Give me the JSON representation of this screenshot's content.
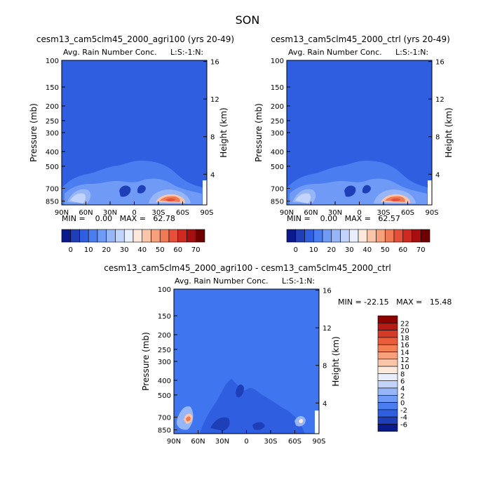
{
  "page": {
    "title": "SON"
  },
  "colors": {
    "background_level": "#2f5fe0",
    "diff_background": "#3f76f0"
  },
  "panels": {
    "left": {
      "title": "cesm13_cam5clm45_2000_agri100 (yrs 20-49)",
      "subtitle": "Avg. Rain Number Conc.",
      "corner_label": "L:S:-1:N:",
      "min_max": "MIN =    0.00   MAX =   62.78"
    },
    "right": {
      "title": "cesm13_cam5clm45_2000_ctrl (yrs 20-49)",
      "subtitle": "Avg. Rain Number Conc.",
      "corner_label": "L:S:-1:N:",
      "min_max": "MIN =    0.00   MAX =   62.57"
    },
    "diff": {
      "title": "cesm13_cam5clm45_2000_agri100 - cesm13_cam5clm45_2000_ctrl",
      "subtitle": "Avg. Rain Number Conc.",
      "corner_label": "L:S:-1:N:",
      "min_max": "MIN = -22.15   MAX =   15.48"
    }
  },
  "axes": {
    "ylabel": "Pressure (mb)",
    "y2label": "Height (km)",
    "x_ticks": [
      "90N",
      "60N",
      "30N",
      "0",
      "30S",
      "60S",
      "90S"
    ],
    "y_ticks": [
      "100",
      "150",
      "200",
      "250",
      "300",
      "400",
      "500",
      "700",
      "850"
    ],
    "y2_ticks": [
      "16",
      "12",
      "8",
      "4"
    ]
  },
  "colorbars": {
    "top": {
      "labels": [
        "0",
        "10",
        "20",
        "30",
        "40",
        "50",
        "60",
        "70"
      ],
      "colors": [
        "#0a1a8c",
        "#1f3fb8",
        "#2f5fe0",
        "#4a7ef0",
        "#6f9af5",
        "#96b6f8",
        "#c2d4fb",
        "#e8eefc",
        "#fde8dc",
        "#fbc5aa",
        "#f7a07c",
        "#f07a55",
        "#e6503a",
        "#cf2a20",
        "#a60f0f",
        "#6e0000"
      ]
    },
    "diff": {
      "labels": [
        "22",
        "20",
        "18",
        "16",
        "14",
        "12",
        "10",
        "8",
        "6",
        "4",
        "2",
        "0",
        "-2",
        "-4",
        "-6"
      ],
      "colors": [
        "#8c0000",
        "#b51a14",
        "#d43a26",
        "#ea5c3a",
        "#f47f55",
        "#f7a07c",
        "#fbc5aa",
        "#fde8dc",
        "#e8eefc",
        "#c2d4fb",
        "#96b6f8",
        "#6f9af5",
        "#4a7ef0",
        "#2f5fe0",
        "#1f3fb8",
        "#0a1a8c"
      ]
    }
  },
  "chart_data": [
    {
      "type": "heatmap",
      "title": "cesm13_cam5clm45_2000_agri100 (yrs 20-49)",
      "variable": "Avg. Rain Number Conc.",
      "x_categories": [
        "90N",
        "60N",
        "30N",
        "0",
        "30S",
        "60S",
        "90S"
      ],
      "x_range": [
        90,
        -90
      ],
      "ylabel": "Pressure (mb)",
      "y_scale": "log",
      "y_range": [
        100,
        900
      ],
      "min": 0.0,
      "max": 62.78,
      "features": [
        {
          "lat": 45,
          "pressure": 800,
          "value": 40
        },
        {
          "lat": -45,
          "pressure": 800,
          "value": 62
        },
        {
          "lat": 0,
          "pressure": 720,
          "value": 10
        }
      ]
    },
    {
      "type": "heatmap",
      "title": "cesm13_cam5clm45_2000_ctrl (yrs 20-49)",
      "variable": "Avg. Rain Number Conc.",
      "x_categories": [
        "90N",
        "60N",
        "30N",
        "0",
        "30S",
        "60S",
        "90S"
      ],
      "x_range": [
        90,
        -90
      ],
      "ylabel": "Pressure (mb)",
      "y_scale": "log",
      "y_range": [
        100,
        900
      ],
      "min": 0.0,
      "max": 62.57,
      "features": [
        {
          "lat": 45,
          "pressure": 800,
          "value": 40
        },
        {
          "lat": -45,
          "pressure": 800,
          "value": 62
        },
        {
          "lat": 0,
          "pressure": 720,
          "value": 10
        }
      ]
    },
    {
      "type": "heatmap",
      "title": "cesm13_cam5clm45_2000_agri100 - cesm13_cam5clm45_2000_ctrl",
      "variable": "Avg. Rain Number Conc.",
      "x_categories": [
        "90N",
        "60N",
        "30N",
        "0",
        "30S",
        "60S",
        "90S"
      ],
      "x_range": [
        90,
        -90
      ],
      "ylabel": "Pressure (mb)",
      "y_scale": "log",
      "y_range": [
        100,
        900
      ],
      "min": -22.15,
      "max": 15.48,
      "features": [
        {
          "lat": 70,
          "pressure": 700,
          "value": 15
        },
        {
          "lat": 55,
          "pressure": 800,
          "value": -6
        },
        {
          "lat": -70,
          "pressure": 780,
          "value": 8
        }
      ]
    }
  ]
}
